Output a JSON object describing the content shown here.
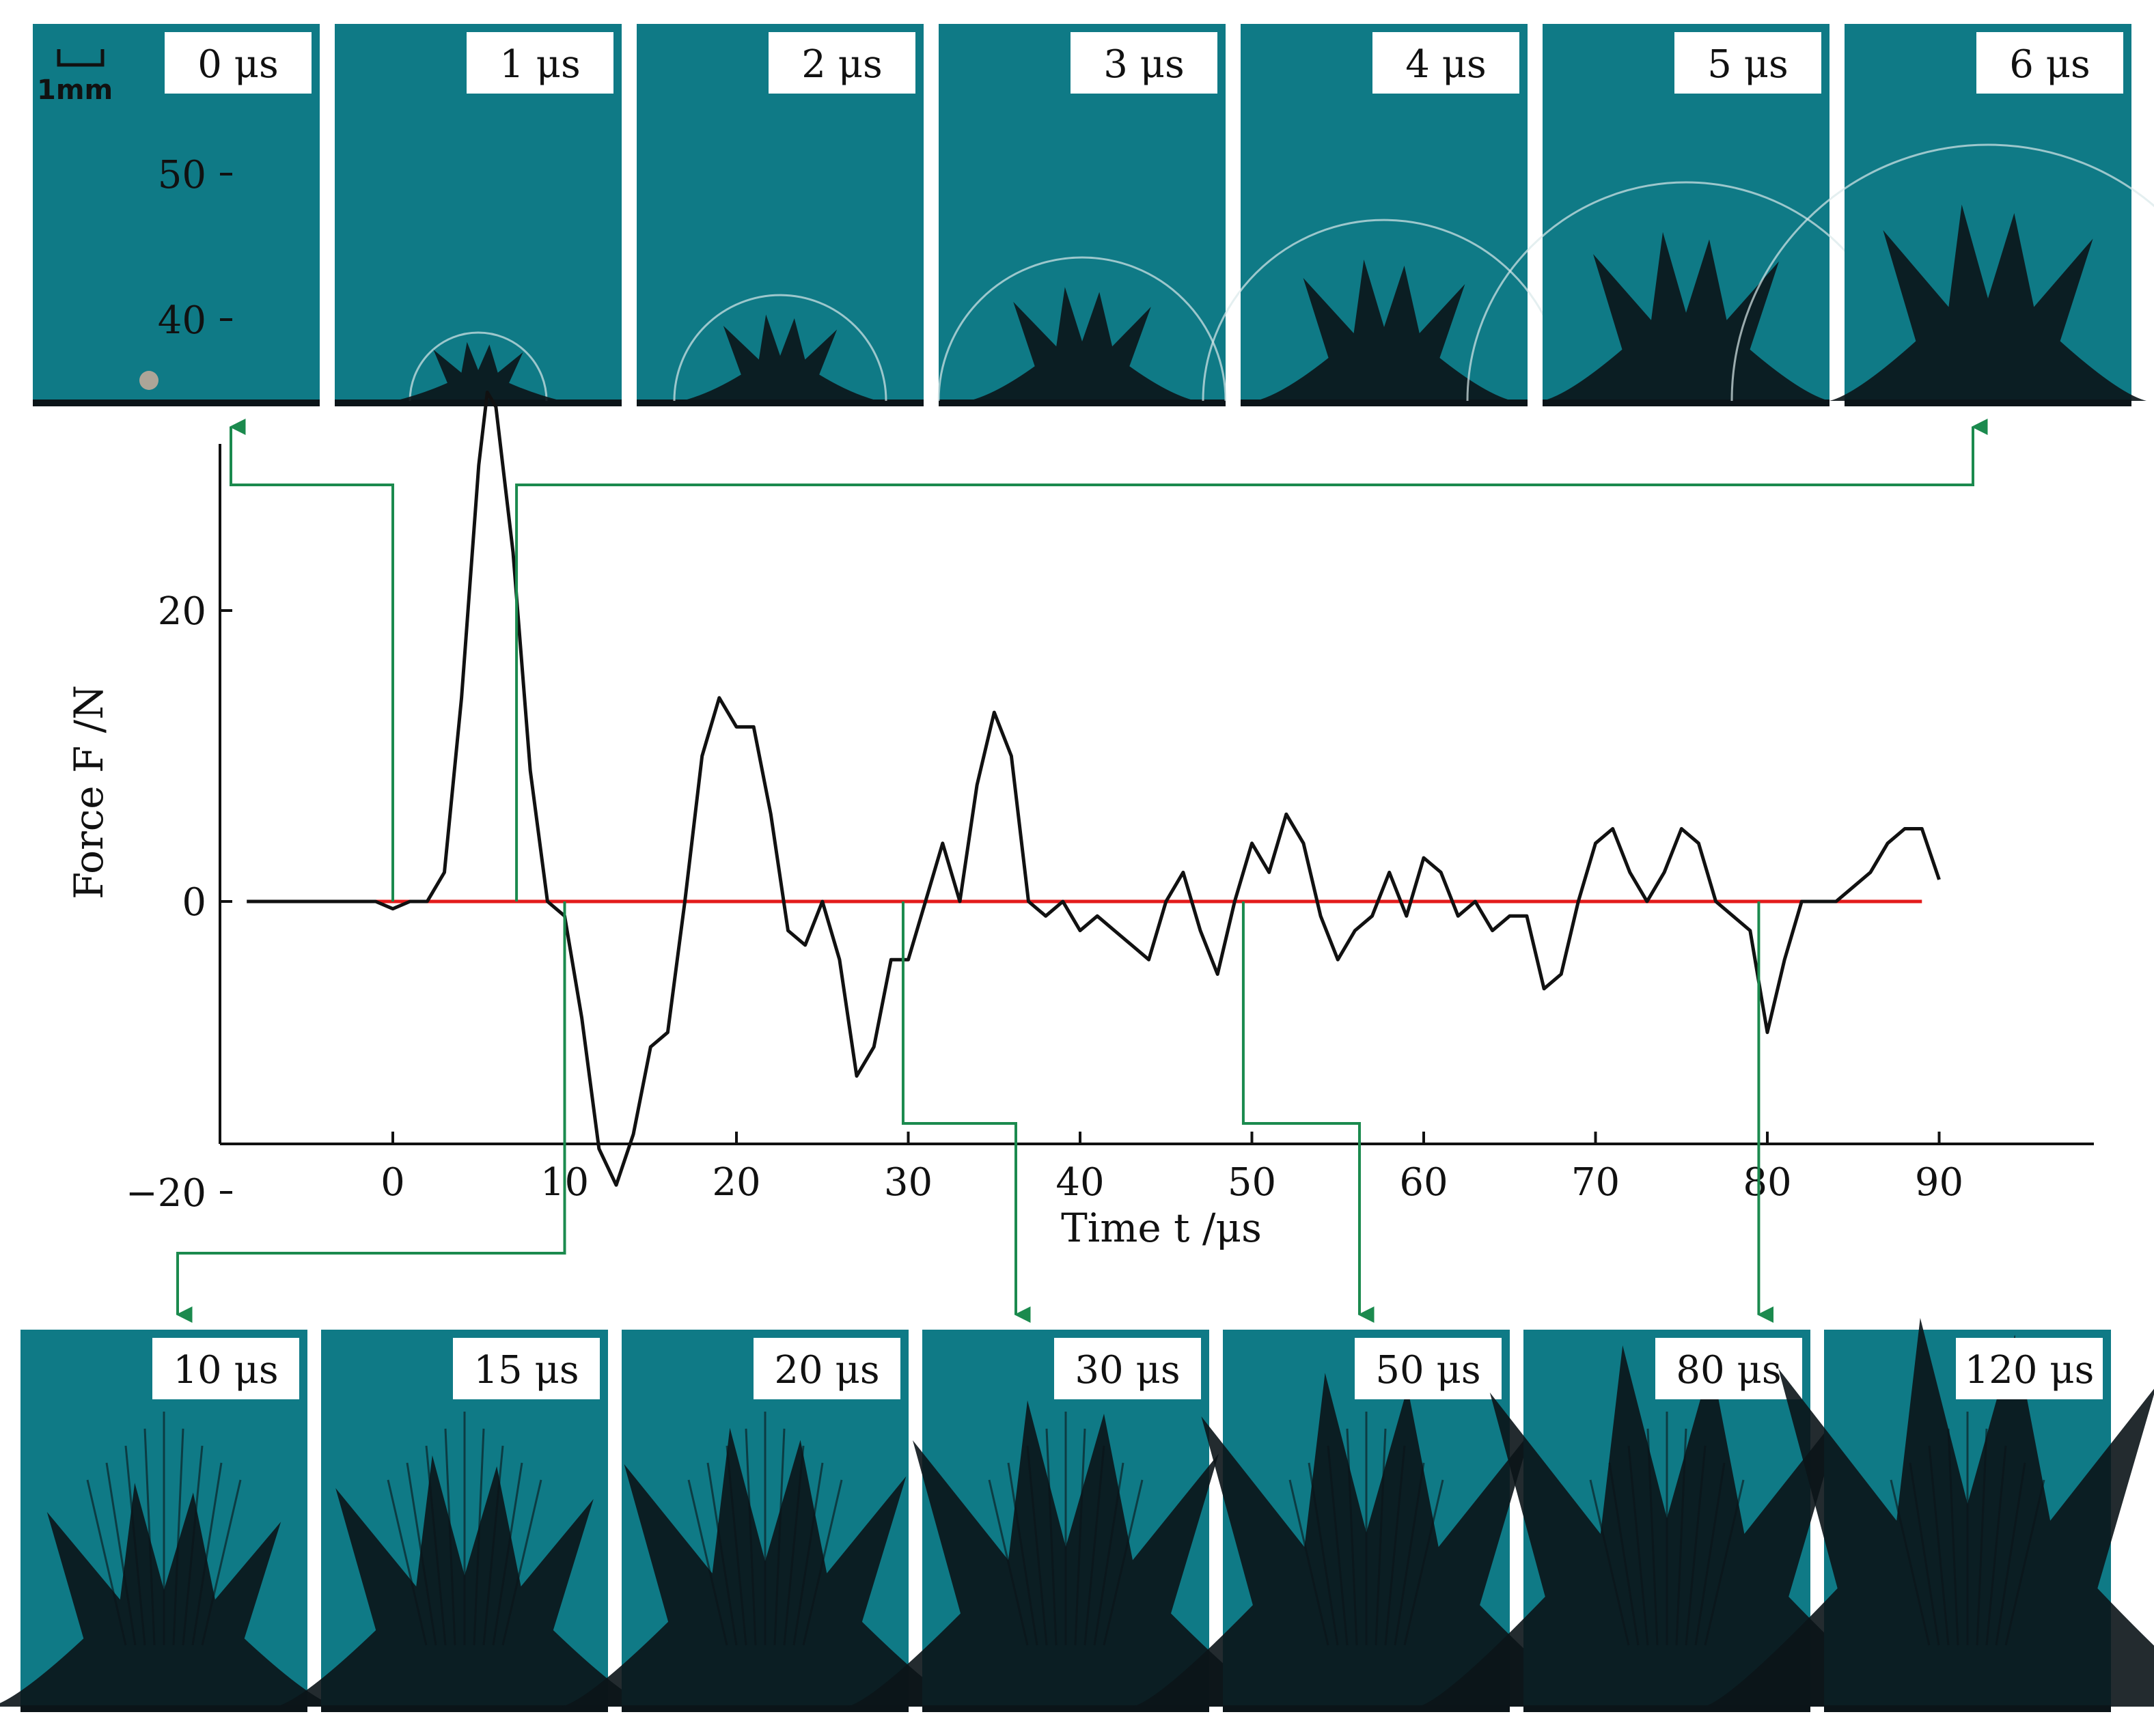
{
  "colors": {
    "background": "#ffffff",
    "frame_fill": "#0f7a86",
    "frame_fill_dark": "#0a5f69",
    "splash": "#0b1418",
    "connector": "#1b8a4e",
    "force_curve": "#111111",
    "zero_line": "#e31b1b",
    "axis": "#111111"
  },
  "scale_bar": {
    "label": "1mm"
  },
  "top_frames": [
    {
      "label": "0 μs",
      "time_us": 0
    },
    {
      "label": "1 μs",
      "time_us": 1
    },
    {
      "label": "2 μs",
      "time_us": 2
    },
    {
      "label": "3 μs",
      "time_us": 3
    },
    {
      "label": "4 μs",
      "time_us": 4
    },
    {
      "label": "5 μs",
      "time_us": 5
    },
    {
      "label": "6 μs",
      "time_us": 6
    }
  ],
  "bottom_frames": [
    {
      "label": "10 μs",
      "time_us": 10
    },
    {
      "label": "15 μs",
      "time_us": 15
    },
    {
      "label": "20 μs",
      "time_us": 20
    },
    {
      "label": "30 μs",
      "time_us": 30
    },
    {
      "label": "50 μs",
      "time_us": 50
    },
    {
      "label": "80 μs",
      "time_us": 80
    },
    {
      "label": "120 μs",
      "time_us": 120
    }
  ],
  "chart_data": {
    "type": "line",
    "title": "",
    "xlabel": "Time t /μs",
    "ylabel": "Force F /N",
    "xlim": [
      -10,
      99
    ],
    "ylim": [
      -33,
      55
    ],
    "xticks": [
      0,
      10,
      20,
      30,
      40,
      50,
      60,
      70,
      80,
      90
    ],
    "yticks": [
      -20,
      0,
      20,
      40,
      50
    ],
    "ytick_labels": [
      "−20",
      "0",
      "20",
      "40",
      "50"
    ],
    "grid": false,
    "legend": "none",
    "series": [
      {
        "color": "#111111",
        "x": [
          -8.5,
          -7,
          -5,
          -3,
          -1,
          0,
          1,
          2,
          3,
          4,
          5,
          5.5,
          6,
          7,
          8,
          9,
          10,
          11,
          12,
          13,
          14,
          15,
          16,
          17,
          18,
          19,
          20,
          21,
          22,
          23,
          24,
          25,
          26,
          27,
          28,
          29,
          30,
          31,
          32,
          33,
          34,
          35,
          36,
          37,
          38,
          39,
          40,
          41,
          42,
          43,
          44,
          45,
          46,
          47,
          48,
          49,
          50,
          51,
          52,
          53,
          54,
          55,
          56,
          57,
          58,
          59,
          60,
          61,
          62,
          63,
          64,
          65,
          66,
          67,
          68,
          69,
          70,
          71,
          72,
          73,
          74,
          75,
          76,
          77,
          78,
          79,
          80,
          81,
          82,
          83,
          84,
          85,
          86,
          87,
          88,
          89,
          90
        ],
        "y": [
          0,
          0,
          0,
          0,
          0,
          -0.5,
          0,
          0,
          2,
          14,
          30,
          35,
          34,
          24,
          9,
          0,
          -1,
          -8,
          -17,
          -19.5,
          -16,
          -10,
          -9,
          0,
          10,
          14,
          12,
          12,
          6,
          -2,
          -3,
          0,
          -4,
          -12,
          -10,
          -4,
          -4,
          0,
          4,
          0,
          8,
          13,
          10,
          0,
          -1,
          0,
          -2,
          -1,
          -2,
          -3,
          -4,
          0,
          2,
          -2,
          -5,
          0,
          4,
          2,
          6,
          4,
          -1,
          -4,
          -2,
          -1,
          2,
          -1,
          3,
          2,
          -1,
          0,
          -2,
          -1,
          -1,
          -6,
          -5,
          0,
          4,
          5,
          2,
          0,
          2,
          5,
          4,
          0,
          -1,
          -2,
          -9,
          -4,
          0,
          0,
          0,
          1,
          2,
          4,
          5,
          5,
          1.5
        ]
      },
      {
        "color": "#e31b1b",
        "x": [
          -8,
          89
        ],
        "y": [
          0,
          0
        ]
      }
    ],
    "connectors": [
      {
        "from_time_us": 0,
        "to_frame": "0 μs"
      },
      {
        "from_time_us": 7.2,
        "to_frame": "6 μs"
      },
      {
        "from_time_us": 10,
        "to_frame": "10 μs"
      },
      {
        "from_time_us": 29.7,
        "to_frame": "30 μs"
      },
      {
        "from_time_us": 49.5,
        "to_frame": "50 μs"
      },
      {
        "from_time_us": 79.5,
        "to_frame": "80 μs"
      }
    ]
  }
}
